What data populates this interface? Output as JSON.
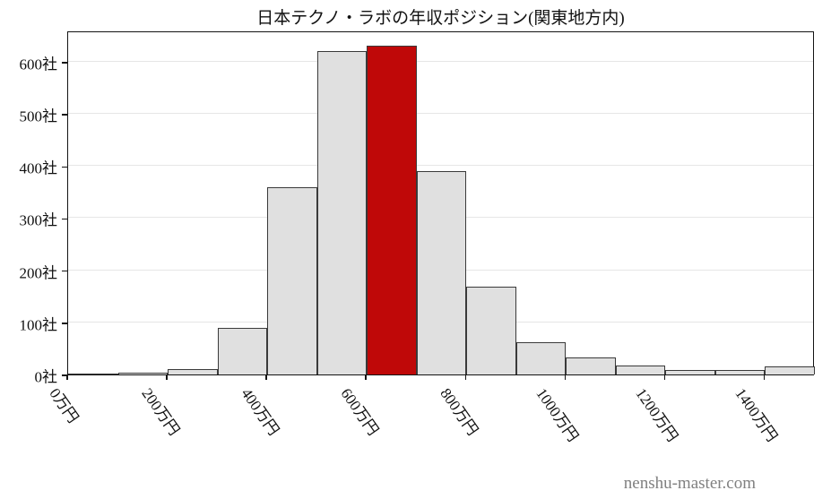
{
  "watermark": "nenshu-master.com",
  "chart_data": {
    "type": "bar",
    "title": "日本テクノ・ラボの年収ポジション(関東地方内)",
    "xlabel": "",
    "ylabel": "",
    "x_unit": "万円",
    "y_unit": "社",
    "xlim": [
      0,
      1500
    ],
    "ylim": [
      0,
      660
    ],
    "grid": true,
    "legend": false,
    "bin_width": 100,
    "bins_start": [
      0,
      100,
      200,
      300,
      400,
      500,
      600,
      700,
      800,
      900,
      1000,
      1100,
      1200,
      1300,
      1400
    ],
    "values": [
      2,
      3,
      10,
      90,
      360,
      620,
      630,
      390,
      168,
      62,
      33,
      17,
      9,
      8,
      16
    ],
    "highlight_index": 6,
    "highlight_bin_label": "600万円",
    "x_ticks": [
      {
        "value": 0,
        "label": "0万円"
      },
      {
        "value": 200,
        "label": "200万円"
      },
      {
        "value": 400,
        "label": "400万円"
      },
      {
        "value": 600,
        "label": "600万円"
      },
      {
        "value": 800,
        "label": "800万円"
      },
      {
        "value": 1000,
        "label": "1000万円"
      },
      {
        "value": 1200,
        "label": "1200万円"
      },
      {
        "value": 1400,
        "label": "1400万円"
      }
    ],
    "y_ticks": [
      {
        "value": 0,
        "label": "0社"
      },
      {
        "value": 100,
        "label": "100社"
      },
      {
        "value": 200,
        "label": "200社"
      },
      {
        "value": 300,
        "label": "300社"
      },
      {
        "value": 400,
        "label": "400社"
      },
      {
        "value": 500,
        "label": "500社"
      },
      {
        "value": 600,
        "label": "600社"
      }
    ],
    "colors": {
      "bar_fill": "#e0e0e0",
      "bar_edge": "#3a3a3a",
      "highlight_fill": "#bf0808",
      "grid_line": "#e6e6e6",
      "axis": "#141414",
      "text": "#111111",
      "watermark": "#808080"
    }
  }
}
